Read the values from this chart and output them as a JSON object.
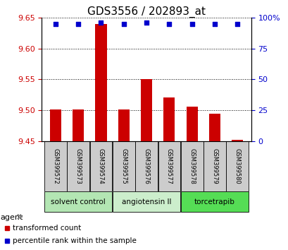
{
  "title": "GDS3556 / 202893_at",
  "samples": [
    "GSM399572",
    "GSM399573",
    "GSM399574",
    "GSM399575",
    "GSM399576",
    "GSM399577",
    "GSM399578",
    "GSM399579",
    "GSM399580"
  ],
  "bar_values": [
    9.501,
    9.501,
    9.64,
    9.501,
    9.55,
    9.521,
    9.506,
    9.495,
    9.452
  ],
  "percentile_values": [
    95,
    95,
    96,
    95,
    96,
    95,
    95,
    95,
    95
  ],
  "bar_bottom": 9.45,
  "ylim_left": [
    9.45,
    9.65
  ],
  "ylim_right": [
    0,
    100
  ],
  "yticks_left": [
    9.45,
    9.5,
    9.55,
    9.6,
    9.65
  ],
  "yticks_right": [
    0,
    25,
    50,
    75,
    100
  ],
  "bar_color": "#cc0000",
  "dot_color": "#0000cc",
  "groups": [
    {
      "label": "solvent control",
      "start": 0,
      "end": 3,
      "color": "#b3e6b3"
    },
    {
      "label": "angiotensin II",
      "start": 3,
      "end": 6,
      "color": "#cceecc"
    },
    {
      "label": "torcetrapib",
      "start": 6,
      "end": 9,
      "color": "#55dd55"
    }
  ],
  "legend_items": [
    {
      "label": "transformed count",
      "color": "#cc0000"
    },
    {
      "label": "percentile rank within the sample",
      "color": "#0000cc"
    }
  ],
  "agent_label": "agent",
  "grid_color": "#000000",
  "sample_box_color": "#cccccc",
  "title_fontsize": 11,
  "tick_fontsize": 8
}
